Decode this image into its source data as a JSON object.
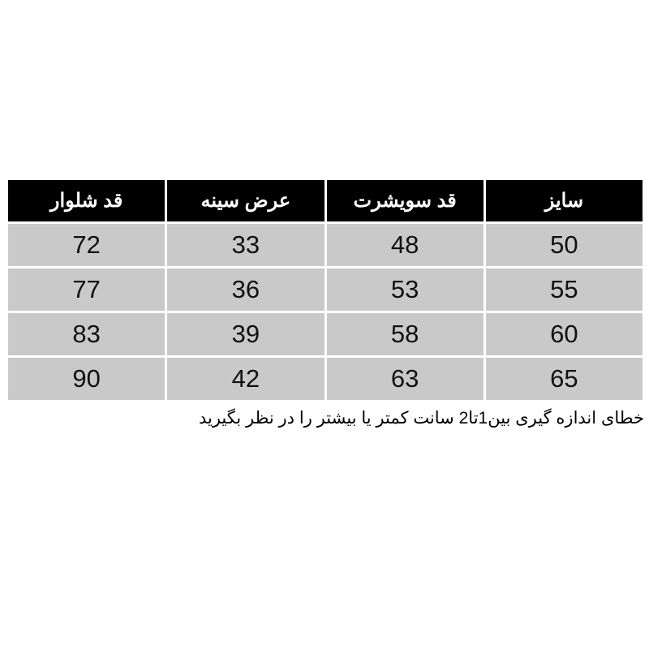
{
  "table": {
    "headers": [
      "سایز",
      "قد سویشرت",
      "عرض سینه",
      "قد شلوار"
    ],
    "rows": [
      [
        "50",
        "48",
        "33",
        "72"
      ],
      [
        "55",
        "53",
        "36",
        "77"
      ],
      [
        "60",
        "58",
        "39",
        "83"
      ],
      [
        "65",
        "63",
        "42",
        "90"
      ]
    ]
  },
  "note": "خطای اندازه گیری بین1تا2 سانت کمتر یا بیشتر را در نظر بگیرید",
  "colors": {
    "header_bg": "#000000",
    "header_text": "#ffffff",
    "cell_bg": "#c9c9c9"
  }
}
